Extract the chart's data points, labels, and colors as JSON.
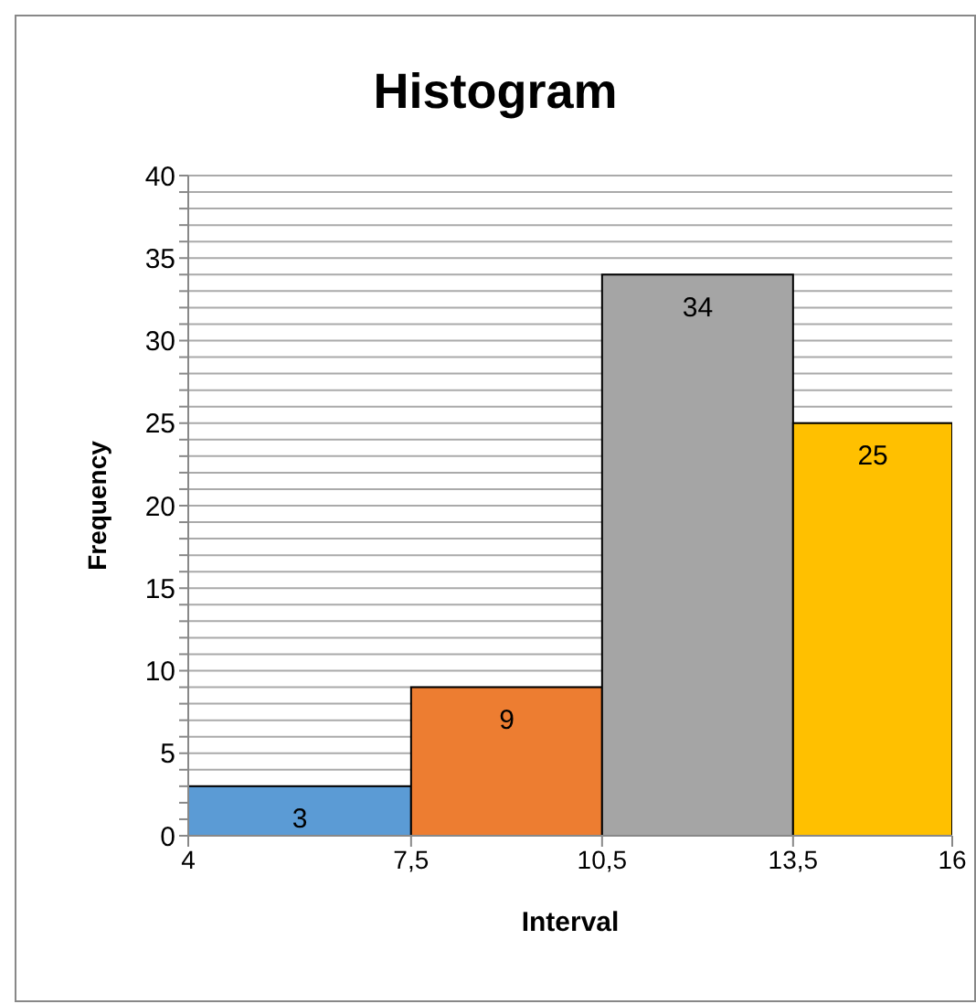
{
  "chart_data": {
    "type": "histogram",
    "title": "Histogram",
    "xlabel": "Interval",
    "ylabel": "Frequency",
    "bins": [
      4,
      7.5,
      10.5,
      13.5,
      16
    ],
    "values": [
      3,
      9,
      34,
      25
    ],
    "colors": [
      "#5b9bd5",
      "#ed7d31",
      "#a5a5a5",
      "#ffc000"
    ],
    "xlim": [
      4,
      16
    ],
    "xticks": [
      4,
      {
        "value": 7.5,
        "label": "7,5"
      },
      {
        "value": 10.5,
        "label": "10,5"
      },
      {
        "value": 13.5,
        "label": "13,5"
      },
      16
    ],
    "ylim": [
      0,
      40
    ],
    "yticks": [
      0,
      {
        "value": 1,
        "label": null
      },
      {
        "value": 2,
        "label": null
      },
      {
        "value": 3,
        "label": null
      },
      {
        "value": 4,
        "label": null
      },
      5,
      {
        "value": 6,
        "label": null
      },
      {
        "value": 7,
        "label": null
      },
      {
        "value": 8,
        "label": null
      },
      {
        "value": 9,
        "label": null
      },
      10,
      {
        "value": 11,
        "label": null
      },
      {
        "value": 12,
        "label": null
      },
      {
        "value": 13,
        "label": null
      },
      {
        "value": 14,
        "label": null
      },
      15,
      {
        "value": 16,
        "label": null
      },
      {
        "value": 17,
        "label": null
      },
      {
        "value": 18,
        "label": null
      },
      {
        "value": 19,
        "label": null
      },
      20,
      {
        "value": 21,
        "label": null
      },
      {
        "value": 22,
        "label": null
      },
      {
        "value": 23,
        "label": null
      },
      {
        "value": 24,
        "label": null
      },
      25,
      {
        "value": 26,
        "label": null
      },
      {
        "value": 27,
        "label": null
      },
      {
        "value": 28,
        "label": null
      },
      {
        "value": 29,
        "label": null
      },
      30,
      {
        "value": 31,
        "label": null
      },
      {
        "value": 32,
        "label": null
      },
      {
        "value": 33,
        "label": null
      },
      {
        "value": 34,
        "label": null
      },
      35,
      {
        "value": 36,
        "label": null
      },
      {
        "value": 37,
        "label": null
      },
      {
        "value": 38,
        "label": null
      },
      {
        "value": 39,
        "label": null
      },
      40
    ],
    "grid": "y",
    "data_labels": true
  }
}
